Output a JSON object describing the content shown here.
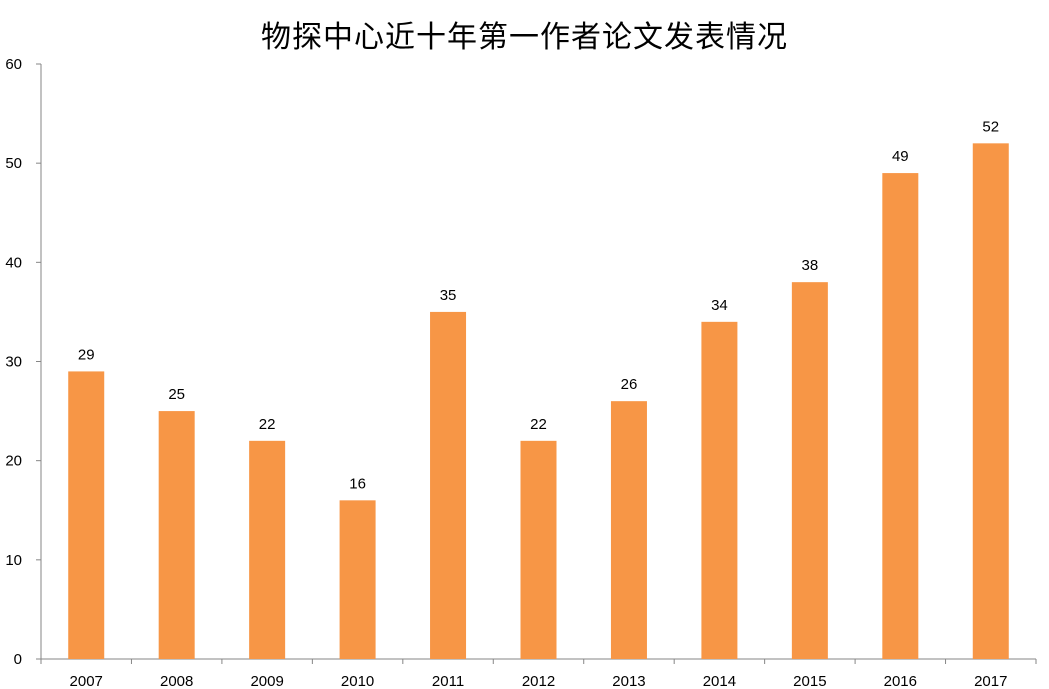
{
  "chart_data": {
    "type": "bar",
    "title": "物探中心近十年第一作者论文发表情况",
    "categories": [
      "2007",
      "2008",
      "2009",
      "2010",
      "2011",
      "2012",
      "2013",
      "2014",
      "2015",
      "2016",
      "2017"
    ],
    "values": [
      29,
      25,
      22,
      16,
      35,
      22,
      26,
      34,
      38,
      49,
      52
    ],
    "data_labels": [
      "29",
      "25",
      "22",
      "16",
      "35",
      "22",
      "26",
      "34",
      "38",
      "49",
      "52"
    ],
    "ylim": [
      0,
      60
    ],
    "y_ticks": [
      0,
      10,
      20,
      30,
      40,
      50,
      60
    ],
    "y_tick_labels": [
      "0",
      "10",
      "20",
      "30",
      "40",
      "50",
      "60"
    ],
    "xlabel": "",
    "ylabel": "",
    "grid": false,
    "legend": "none",
    "bar_color": "#F79646",
    "axis_color": "#868686"
  }
}
